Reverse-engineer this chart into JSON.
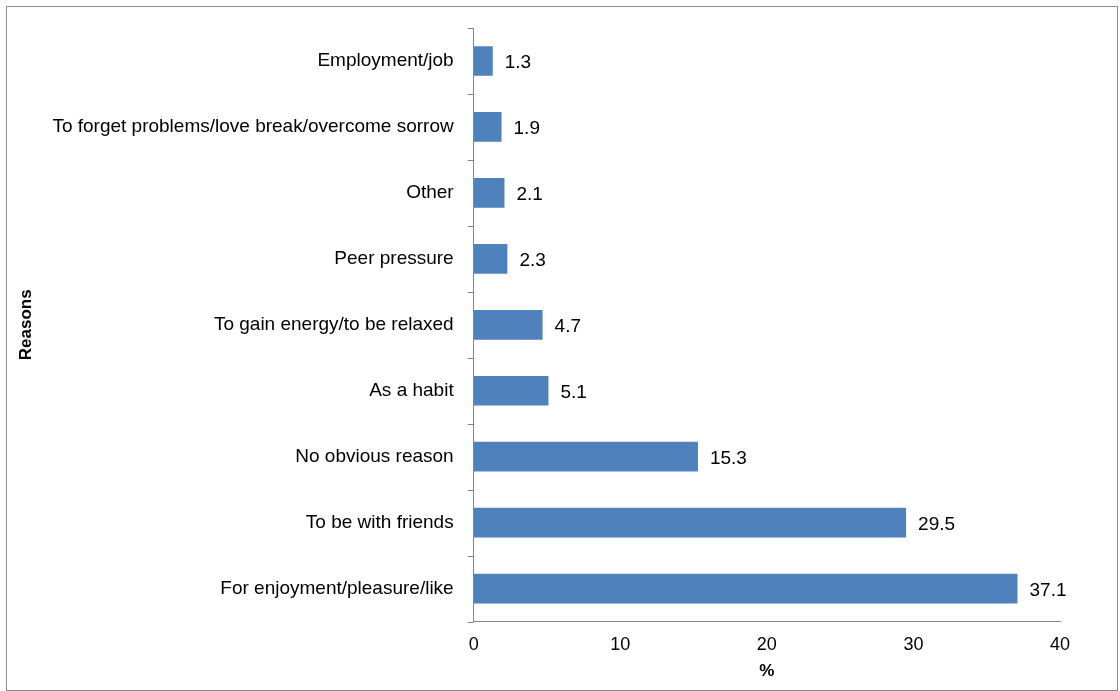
{
  "chart_data": {
    "type": "bar",
    "orientation": "horizontal",
    "xlabel": "%",
    "ylabel": "Reasons",
    "categories": [
      "Employment/job",
      "To forget problems/love break/overcome sorrow",
      "Other",
      "Peer pressure",
      "To gain energy/to be relaxed",
      "As a habit",
      "No obvious reason",
      "To be with friends",
      "For enjoyment/pleasure/like"
    ],
    "values": [
      1.3,
      1.9,
      2.1,
      2.3,
      4.7,
      5.1,
      15.3,
      29.5,
      37.1
    ],
    "color": "#4f81bd",
    "xlim": [
      0,
      40
    ],
    "xticks": [
      0,
      10,
      20,
      30,
      40
    ],
    "data_labels": true,
    "grid": false,
    "legend": false
  }
}
